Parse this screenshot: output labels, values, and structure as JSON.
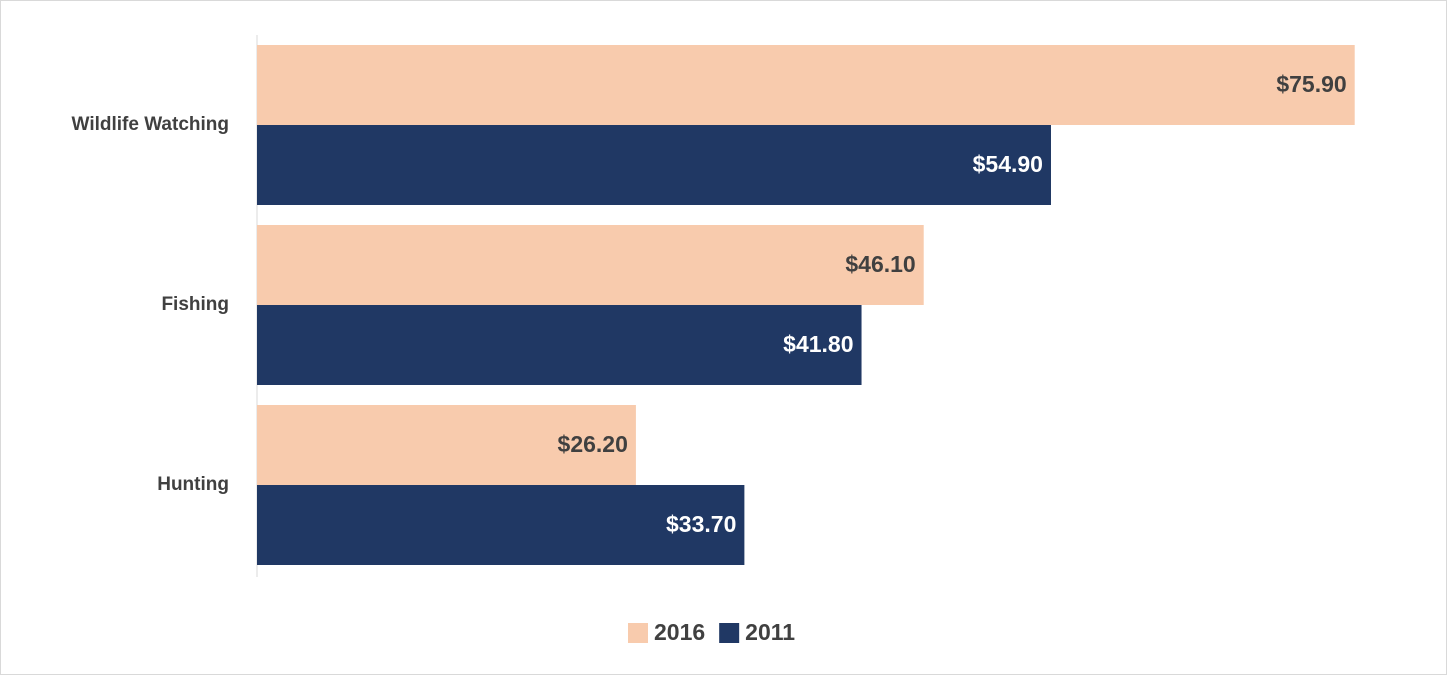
{
  "chart_data": {
    "type": "hbar",
    "categories": [
      "Wildlife Watching",
      "Fishing",
      "Hunting"
    ],
    "series": [
      {
        "name": "2016",
        "color": "#f8cbad",
        "label_color": "#404040",
        "values": [
          75.9,
          46.1,
          26.2
        ],
        "value_labels": [
          "$75.90",
          "$46.10",
          "$26.20"
        ]
      },
      {
        "name": "2011",
        "color": "#203864",
        "label_color": "#ffffff",
        "values": [
          54.9,
          41.8,
          33.7
        ],
        "value_labels": [
          "$54.90",
          "$41.80",
          "$33.70"
        ]
      }
    ],
    "xlim": [
      0,
      80
    ],
    "legend": "bottom"
  }
}
